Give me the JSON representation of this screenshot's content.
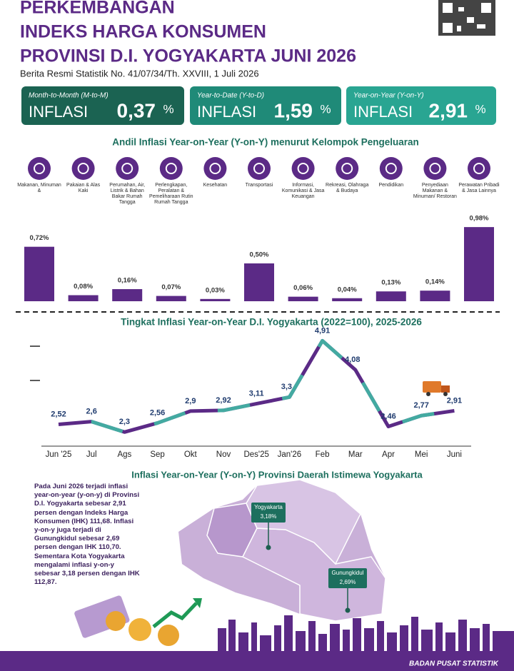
{
  "header": {
    "title": [
      "PERKEMBANGAN",
      "INDEKS HARGA KONSUMEN",
      "PROVINSI D.I. YOGYAKARTA JUNI 2026"
    ],
    "subtitle": "Berita Resmi Statistik No. 41/07/34/Th. XXVIII, 1 Juli 2026"
  },
  "cards": [
    {
      "label": "Month-to-Month (M-to-M)",
      "word": "INFLASI",
      "value": "0,37",
      "unit": "%"
    },
    {
      "label": "Year-to-Date (Y-to-D)",
      "word": "INFLASI",
      "value": "1,59",
      "unit": "%"
    },
    {
      "label": "Year-on-Year (Y-on-Y)",
      "word": "INFLASI",
      "value": "2,91",
      "unit": "%"
    }
  ],
  "chart_data": [
    {
      "type": "bar",
      "title": "Andil Inflasi Year-on-Year (Y-on-Y) menurut Kelompok Pengeluaran",
      "categories": [
        "Makanan, Minuman &",
        "Pakaian & Alas Kaki",
        "Perumahan, Air, Listrik & Bahan Bakar Rumah Tangga",
        "Perlengkapan, Peralatan & Pemeliharaan Rutin Rumah Tangga",
        "Kesehatan",
        "Transportasi",
        "Informasi, Komunikasi & Jasa Keuangan",
        "Rekreasi, Olahraga & Budaya",
        "Pendidikan",
        "Penyediaan Makanan & Minuman/ Restoran",
        "Perawatan Pribadi & Jasa Lainnya"
      ],
      "values": [
        0.72,
        0.08,
        0.16,
        0.07,
        0.03,
        0.5,
        0.06,
        0.04,
        0.13,
        0.14,
        0.98
      ],
      "value_labels": [
        "0,72%",
        "0,08%",
        "0,16%",
        "0,07%",
        "0,03%",
        "0,50%",
        "0,06%",
        "0,04%",
        "0,13%",
        "0,14%",
        "0,98%"
      ],
      "color": "#5b2a86"
    },
    {
      "type": "line",
      "title": "Tingkat Inflasi Year-on-Year D.I. Yogyakarta (2022=100), 2025-2026",
      "categories": [
        "Jun '25",
        "Jul",
        "Ags",
        "Sep",
        "Okt",
        "Nov",
        "Des'25",
        "Jan'26",
        "Feb",
        "Mar",
        "Apr",
        "Mei",
        "Juni"
      ],
      "values": [
        2.52,
        2.6,
        2.3,
        2.56,
        2.9,
        2.92,
        3.11,
        3.3,
        4.91,
        4.08,
        2.46,
        2.77,
        2.91
      ],
      "value_labels": [
        "2,52",
        "2,6",
        "2,3",
        "2,56",
        "2,9",
        "2,92",
        "3,11",
        "3,3",
        "4,91",
        "4,08",
        "2,46",
        "2,77",
        "2,91"
      ],
      "color": "#5b2a86"
    }
  ],
  "map": {
    "title": "Inflasi Year-on-Year (Y-on-Y) Provinsi Daerah Istimewa Yogyakarta",
    "text": "Pada Juni 2026 terjadi inflasi year-on-year (y-on-y) di Provinsi D.I. Yogyakarta sebesar 2,91 persen dengan Indeks Harga Konsumen (IHK) 111,68. Inflasi y-on-y juga terjadi di Gunungkidul sebesar 2,69 persen dengan IHK 110,70. Sementara Kota Yogyakarta mengalami inflasi y-on-y sebesar 3,18 persen dengan IHK 112,87.",
    "regions": [
      {
        "name": "Yogyakarta",
        "value": "3,18%"
      },
      {
        "name": "Gunungkidul",
        "value": "2,69%"
      }
    ]
  },
  "footer": "BADAN PUSAT STATISTIK"
}
